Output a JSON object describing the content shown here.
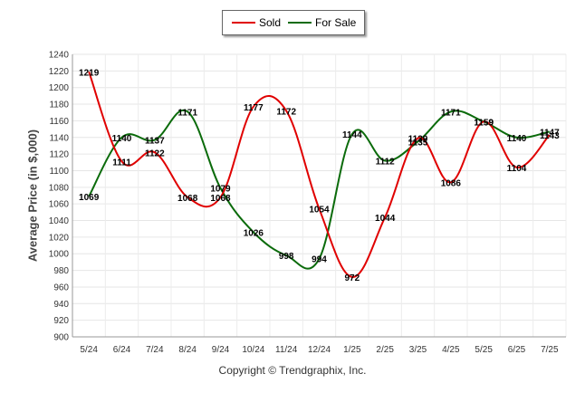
{
  "chart_data": {
    "type": "line",
    "title": "",
    "ylabel": "Average Price (in $,000)",
    "xlabel": "",
    "categories": [
      "5/24",
      "6/24",
      "7/24",
      "8/24",
      "9/24",
      "10/24",
      "11/24",
      "12/24",
      "1/25",
      "2/25",
      "3/25",
      "4/25",
      "5/25",
      "6/25",
      "7/25"
    ],
    "ylim": [
      900,
      1240
    ],
    "yticks": [
      900,
      920,
      940,
      960,
      980,
      1000,
      1020,
      1040,
      1060,
      1080,
      1100,
      1120,
      1140,
      1160,
      1180,
      1200,
      1220,
      1240
    ],
    "series": [
      {
        "name": "Sold",
        "color": "#e00000",
        "values": [
          1219,
          1111,
          1122,
          1068,
          1068,
          1177,
          1172,
          1054,
          972,
          1044,
          1139,
          1086,
          1159,
          1104,
          1143
        ]
      },
      {
        "name": "For Sale",
        "color": "#0b6b0b",
        "values": [
          1069,
          1140,
          1137,
          1171,
          1079,
          1026,
          998,
          994,
          1144,
          1112,
          1135,
          1171,
          1159,
          1140,
          1147
        ]
      }
    ],
    "legend_position": "top-center",
    "grid": true
  },
  "legend": {
    "sold_label": "Sold",
    "forsale_label": "For Sale"
  },
  "ylabel_text": "Average Price (in $,000)",
  "copyright": "Copyright © Trendgraphix, Inc."
}
